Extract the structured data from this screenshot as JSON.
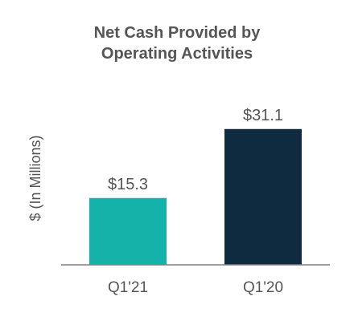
{
  "chart_data": {
    "type": "bar",
    "title_lines": [
      "Net Cash Provided by",
      "Operating Activities"
    ],
    "ylabel": "$ (In Millions)",
    "xlabel": "",
    "categories": [
      "Q1'21",
      "Q1'20"
    ],
    "values": [
      15.3,
      31.1
    ],
    "value_labels": [
      "$15.3",
      "$31.1"
    ],
    "bar_colors": [
      "#14B2A8",
      "#0F2B40"
    ],
    "ylim": [
      0,
      34
    ],
    "grid": false,
    "legend": "none"
  },
  "colors": {
    "title": "#555555",
    "axis_label": "#555555",
    "tick_label": "#555555",
    "baseline": "#7f7f7f"
  }
}
